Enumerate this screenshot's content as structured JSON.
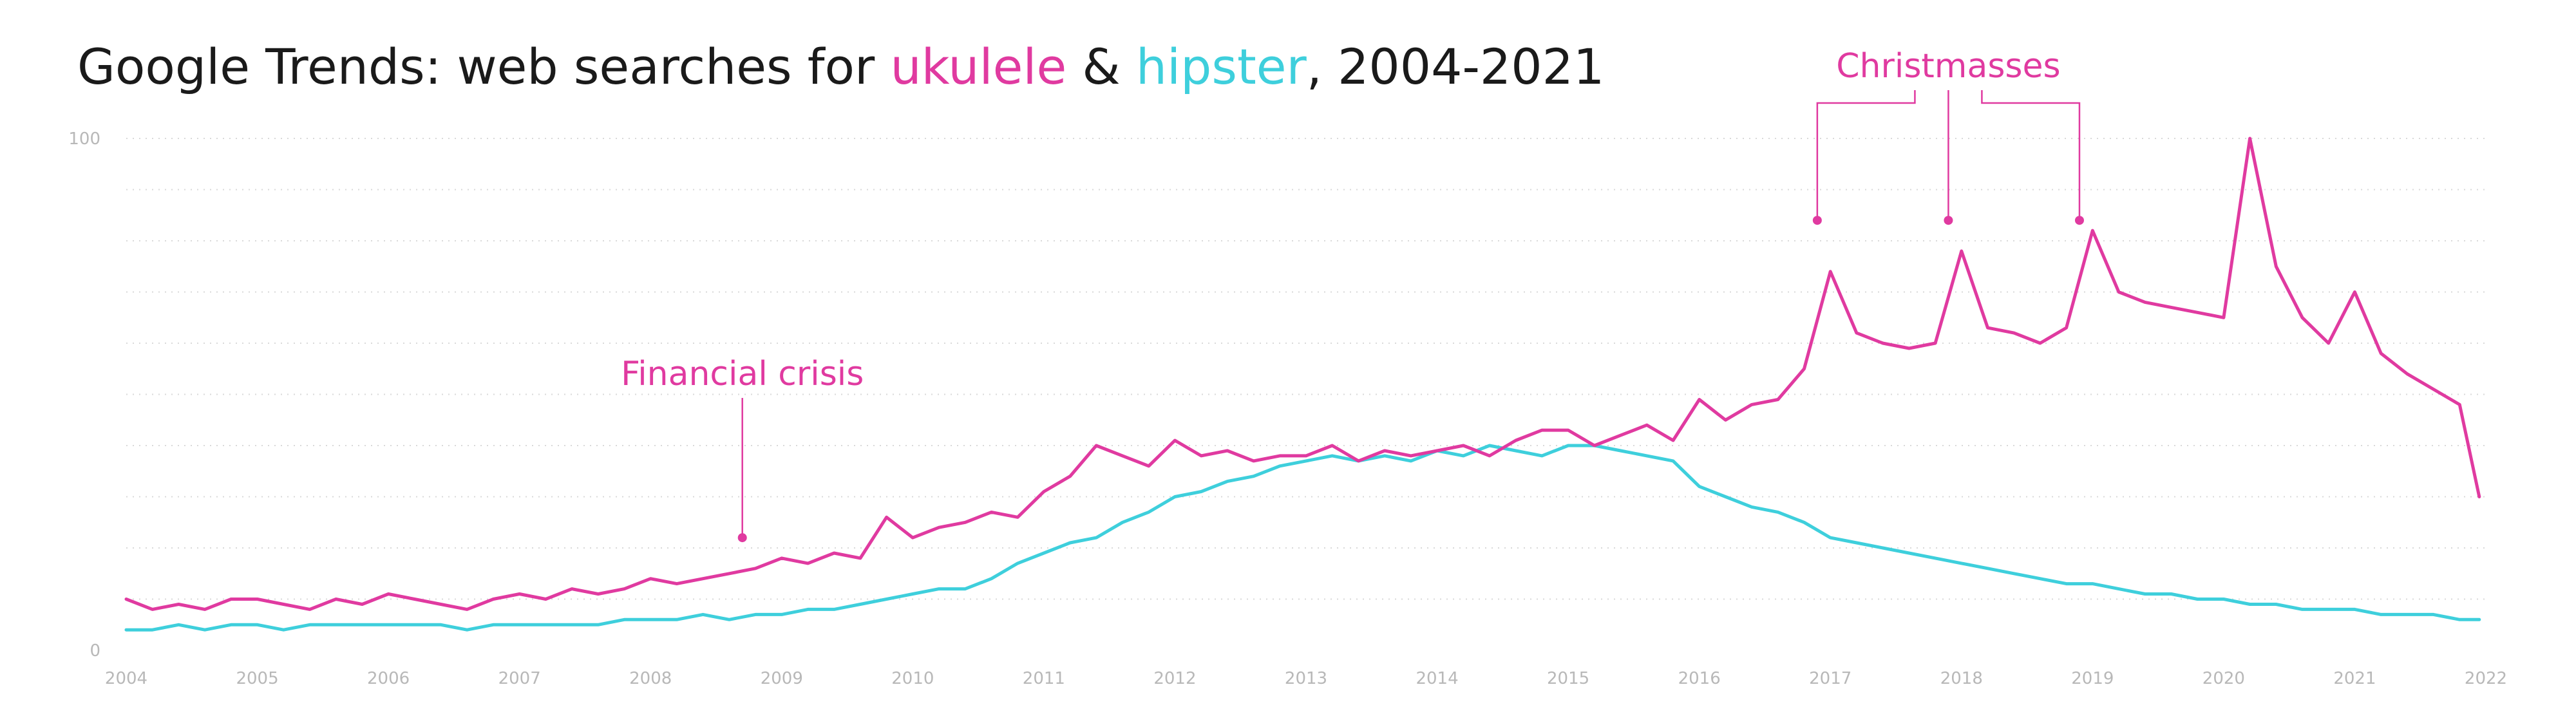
{
  "title": {
    "prefix": "Google Trends: web searches for ",
    "term1": "ukulele",
    "joiner": " & ",
    "term2": "hipster",
    "suffix": ", 2004-2021"
  },
  "colors": {
    "ukulele": "#e03aa0",
    "hipster": "#3ecfdc",
    "grid": "#d9d9d9",
    "axis_text": "#b8b8b8",
    "title": "#1a1a1a"
  },
  "chart_data": {
    "type": "line",
    "title": "Google Trends: web searches for ukulele & hipster, 2004-2021",
    "xlabel": "",
    "ylabel": "",
    "xlim": [
      2004,
      2022
    ],
    "ylim": [
      0,
      100
    ],
    "x_ticks": [
      "2004",
      "2005",
      "2006",
      "2007",
      "2008",
      "2009",
      "2010",
      "2011",
      "2012",
      "2013",
      "2014",
      "2015",
      "2016",
      "2017",
      "2018",
      "2019",
      "2020",
      "2021",
      "2022"
    ],
    "y_ticks": [
      "0",
      "100"
    ],
    "grid": "horizontal dotted",
    "legend": "none (colored words in title)",
    "series": [
      {
        "name": "ukulele",
        "points": [
          [
            2004.0,
            10
          ],
          [
            2004.2,
            8
          ],
          [
            2004.4,
            9
          ],
          [
            2004.6,
            8
          ],
          [
            2004.8,
            10
          ],
          [
            2005.0,
            10
          ],
          [
            2005.2,
            9
          ],
          [
            2005.4,
            8
          ],
          [
            2005.6,
            10
          ],
          [
            2005.8,
            9
          ],
          [
            2006.0,
            11
          ],
          [
            2006.2,
            10
          ],
          [
            2006.4,
            9
          ],
          [
            2006.6,
            8
          ],
          [
            2006.8,
            10
          ],
          [
            2007.0,
            11
          ],
          [
            2007.2,
            10
          ],
          [
            2007.4,
            12
          ],
          [
            2007.6,
            11
          ],
          [
            2007.8,
            12
          ],
          [
            2008.0,
            14
          ],
          [
            2008.2,
            13
          ],
          [
            2008.4,
            14
          ],
          [
            2008.6,
            15
          ],
          [
            2008.8,
            16
          ],
          [
            2009.0,
            18
          ],
          [
            2009.2,
            17
          ],
          [
            2009.4,
            19
          ],
          [
            2009.6,
            18
          ],
          [
            2009.8,
            26
          ],
          [
            2010.0,
            22
          ],
          [
            2010.2,
            24
          ],
          [
            2010.4,
            25
          ],
          [
            2010.6,
            27
          ],
          [
            2010.8,
            26
          ],
          [
            2011.0,
            31
          ],
          [
            2011.2,
            34
          ],
          [
            2011.4,
            40
          ],
          [
            2011.6,
            38
          ],
          [
            2011.8,
            36
          ],
          [
            2012.0,
            41
          ],
          [
            2012.2,
            38
          ],
          [
            2012.4,
            39
          ],
          [
            2012.6,
            37
          ],
          [
            2012.8,
            38
          ],
          [
            2013.0,
            38
          ],
          [
            2013.2,
            40
          ],
          [
            2013.4,
            37
          ],
          [
            2013.6,
            39
          ],
          [
            2013.8,
            38
          ],
          [
            2014.0,
            39
          ],
          [
            2014.2,
            40
          ],
          [
            2014.4,
            38
          ],
          [
            2014.6,
            41
          ],
          [
            2014.8,
            43
          ],
          [
            2015.0,
            43
          ],
          [
            2015.2,
            40
          ],
          [
            2015.4,
            42
          ],
          [
            2015.6,
            44
          ],
          [
            2015.8,
            41
          ],
          [
            2016.0,
            49
          ],
          [
            2016.2,
            45
          ],
          [
            2016.4,
            48
          ],
          [
            2016.6,
            49
          ],
          [
            2016.8,
            55
          ],
          [
            2017.0,
            74
          ],
          [
            2017.2,
            62
          ],
          [
            2017.4,
            60
          ],
          [
            2017.6,
            59
          ],
          [
            2017.8,
            60
          ],
          [
            2018.0,
            78
          ],
          [
            2018.2,
            63
          ],
          [
            2018.4,
            62
          ],
          [
            2018.6,
            60
          ],
          [
            2018.8,
            63
          ],
          [
            2019.0,
            82
          ],
          [
            2019.2,
            70
          ],
          [
            2019.4,
            68
          ],
          [
            2019.6,
            67
          ],
          [
            2019.8,
            66
          ],
          [
            2020.0,
            65
          ],
          [
            2020.2,
            100
          ],
          [
            2020.4,
            75
          ],
          [
            2020.6,
            65
          ],
          [
            2020.8,
            60
          ],
          [
            2021.0,
            70
          ],
          [
            2021.2,
            58
          ],
          [
            2021.4,
            54
          ],
          [
            2021.6,
            51
          ],
          [
            2021.8,
            48
          ],
          [
            2021.95,
            30
          ]
        ]
      },
      {
        "name": "hipster",
        "points": [
          [
            2004.0,
            4
          ],
          [
            2004.2,
            4
          ],
          [
            2004.4,
            5
          ],
          [
            2004.6,
            4
          ],
          [
            2004.8,
            5
          ],
          [
            2005.0,
            5
          ],
          [
            2005.2,
            4
          ],
          [
            2005.4,
            5
          ],
          [
            2005.6,
            5
          ],
          [
            2005.8,
            5
          ],
          [
            2006.0,
            5
          ],
          [
            2006.2,
            5
          ],
          [
            2006.4,
            5
          ],
          [
            2006.6,
            4
          ],
          [
            2006.8,
            5
          ],
          [
            2007.0,
            5
          ],
          [
            2007.2,
            5
          ],
          [
            2007.4,
            5
          ],
          [
            2007.6,
            5
          ],
          [
            2007.8,
            6
          ],
          [
            2008.0,
            6
          ],
          [
            2008.2,
            6
          ],
          [
            2008.4,
            7
          ],
          [
            2008.6,
            6
          ],
          [
            2008.8,
            7
          ],
          [
            2009.0,
            7
          ],
          [
            2009.2,
            8
          ],
          [
            2009.4,
            8
          ],
          [
            2009.6,
            9
          ],
          [
            2009.8,
            10
          ],
          [
            2010.0,
            11
          ],
          [
            2010.2,
            12
          ],
          [
            2010.4,
            12
          ],
          [
            2010.6,
            14
          ],
          [
            2010.8,
            17
          ],
          [
            2011.0,
            19
          ],
          [
            2011.2,
            21
          ],
          [
            2011.4,
            22
          ],
          [
            2011.6,
            25
          ],
          [
            2011.8,
            27
          ],
          [
            2012.0,
            30
          ],
          [
            2012.2,
            31
          ],
          [
            2012.4,
            33
          ],
          [
            2012.6,
            34
          ],
          [
            2012.8,
            36
          ],
          [
            2013.0,
            37
          ],
          [
            2013.2,
            38
          ],
          [
            2013.4,
            37
          ],
          [
            2013.6,
            38
          ],
          [
            2013.8,
            37
          ],
          [
            2014.0,
            39
          ],
          [
            2014.2,
            38
          ],
          [
            2014.4,
            40
          ],
          [
            2014.6,
            39
          ],
          [
            2014.8,
            38
          ],
          [
            2015.0,
            40
          ],
          [
            2015.2,
            40
          ],
          [
            2015.4,
            39
          ],
          [
            2015.6,
            38
          ],
          [
            2015.8,
            37
          ],
          [
            2016.0,
            32
          ],
          [
            2016.2,
            30
          ],
          [
            2016.4,
            28
          ],
          [
            2016.6,
            27
          ],
          [
            2016.8,
            25
          ],
          [
            2017.0,
            22
          ],
          [
            2017.2,
            21
          ],
          [
            2017.4,
            20
          ],
          [
            2017.6,
            19
          ],
          [
            2017.8,
            18
          ],
          [
            2018.0,
            17
          ],
          [
            2018.2,
            16
          ],
          [
            2018.4,
            15
          ],
          [
            2018.6,
            14
          ],
          [
            2018.8,
            13
          ],
          [
            2019.0,
            13
          ],
          [
            2019.2,
            12
          ],
          [
            2019.4,
            11
          ],
          [
            2019.6,
            11
          ],
          [
            2019.8,
            10
          ],
          [
            2020.0,
            10
          ],
          [
            2020.2,
            9
          ],
          [
            2020.4,
            9
          ],
          [
            2020.6,
            8
          ],
          [
            2020.8,
            8
          ],
          [
            2021.0,
            8
          ],
          [
            2021.2,
            7
          ],
          [
            2021.4,
            7
          ],
          [
            2021.6,
            7
          ],
          [
            2021.8,
            6
          ],
          [
            2021.95,
            6
          ]
        ]
      }
    ],
    "annotations": [
      {
        "text": "Financial crisis",
        "x": 2008.7,
        "y": 22
      },
      {
        "text": "Christmasses",
        "points": [
          [
            2016.9,
            84
          ],
          [
            2017.9,
            84
          ],
          [
            2018.9,
            84
          ]
        ]
      }
    ]
  }
}
